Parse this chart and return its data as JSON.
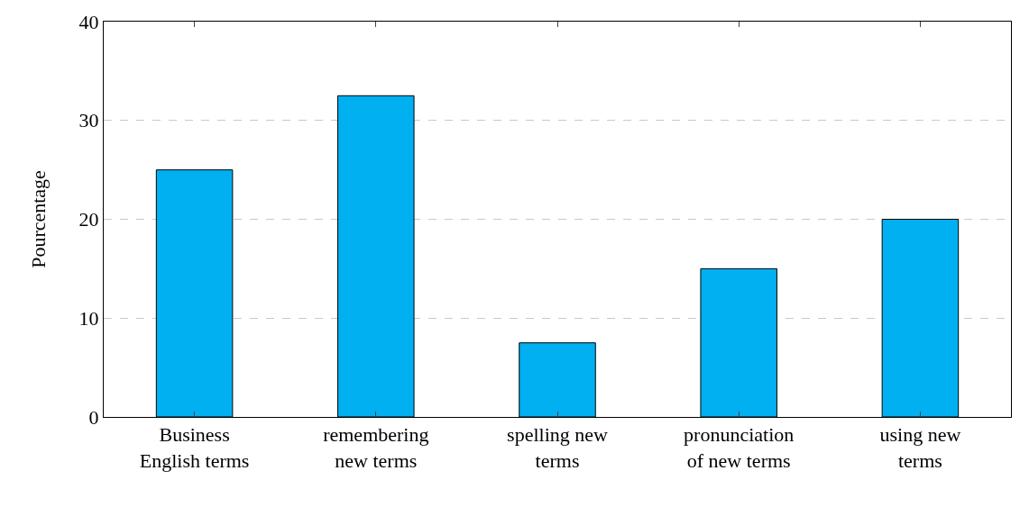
{
  "chart_data": {
    "type": "bar",
    "ylabel": "Pourcentage",
    "categories": [
      "Business English terms",
      "remembering new terms",
      "spelling new terms",
      "pronunciation of new terms",
      "using new terms"
    ],
    "values": [
      25,
      32.5,
      7.5,
      15,
      20
    ],
    "color": "#00b0f0",
    "ylim": [
      0,
      40
    ],
    "yticks": [
      0,
      10,
      20,
      30,
      40
    ],
    "grid": "y"
  }
}
